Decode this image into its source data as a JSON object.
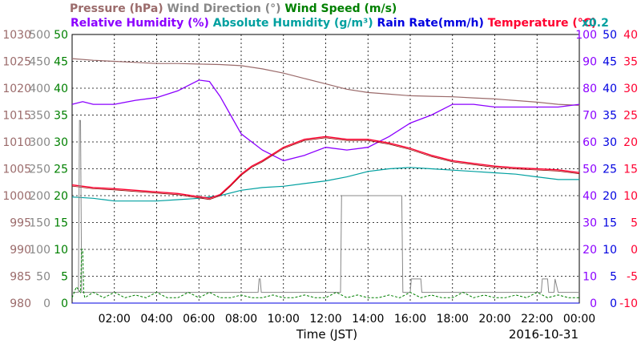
{
  "colors": {
    "pressure": "#9b6b6b",
    "wind_direction": "#888888",
    "wind_speed": "#008000",
    "humidity": "#8b00ff",
    "abs_humidity": "#00a0a0",
    "rain": "#0000e0",
    "temperature": "#ff0030",
    "temperature_dark": "#9b0000",
    "grid": "#000000"
  },
  "header": {
    "row1": [
      {
        "text": "Pressure (hPa)",
        "key": "pressure"
      },
      {
        "text": "Wind Direction (°)",
        "key": "wind_direction"
      },
      {
        "text": "Wind Speed (m/s)",
        "key": "wind_speed"
      }
    ],
    "row2": [
      {
        "text": "Relative Humidity (%)",
        "key": "humidity"
      },
      {
        "text": "Absolute Humidity (g/m³)",
        "key": "abs_humidity"
      },
      {
        "text": "Rain Rate(mm/h)",
        "key": "rain"
      },
      {
        "text": "Temperature (°C)",
        "key": "temperature"
      }
    ],
    "multiplier": "x0.2"
  },
  "footer": {
    "xlabel": "Time (JST)",
    "date": "2016-10-31"
  },
  "chart_data": {
    "type": "line",
    "grid": true,
    "x_range_hours": [
      0,
      24
    ],
    "x_ticks": [
      "02:00",
      "04:00",
      "06:00",
      "08:00",
      "10:00",
      "12:00",
      "14:00",
      "16:00",
      "18:00",
      "20:00",
      "22:00",
      "00:00"
    ],
    "axes": {
      "pressure": {
        "range": [
          980,
          1030
        ],
        "ticks": [
          1030,
          1025,
          1020,
          1015,
          1010,
          1005,
          1000,
          995,
          990,
          985,
          980
        ]
      },
      "wind_direction": {
        "range": [
          0,
          500
        ],
        "ticks": [
          500,
          450,
          400,
          350,
          300,
          250,
          200,
          150,
          100,
          50,
          0
        ]
      },
      "wind_speed": {
        "range": [
          0,
          50
        ],
        "ticks": [
          50,
          45,
          40,
          35,
          30,
          25,
          20,
          15,
          10,
          5,
          0
        ]
      },
      "humidity": {
        "range": [
          0,
          100
        ],
        "ticks": [
          100,
          90,
          80,
          70,
          60,
          50,
          40,
          30,
          20,
          10,
          0
        ]
      },
      "rain": {
        "range": [
          0,
          50
        ],
        "ticks": [
          50,
          45,
          40,
          35,
          30,
          25,
          20,
          15,
          10,
          5,
          0
        ]
      },
      "temperature": {
        "range": [
          -10,
          40
        ],
        "ticks": [
          40,
          35,
          30,
          25,
          20,
          15,
          10,
          5,
          0,
          -5,
          -10
        ]
      }
    },
    "series": [
      {
        "name": "Pressure (hPa)",
        "key": "pressure",
        "axis": "pressure",
        "x": [
          0,
          1,
          2,
          3,
          4,
          5,
          6,
          7,
          8,
          9,
          10,
          11,
          12,
          13,
          14,
          15,
          16,
          17,
          18,
          19,
          20,
          21,
          22,
          23,
          24
        ],
        "y": [
          1025.5,
          1025.2,
          1025,
          1024.8,
          1024.6,
          1024.6,
          1024.5,
          1024.4,
          1024.2,
          1023.6,
          1022.8,
          1021.8,
          1020.8,
          1019.8,
          1019.2,
          1018.9,
          1018.6,
          1018.5,
          1018.4,
          1018.2,
          1018,
          1017.7,
          1017.4,
          1017,
          1016.8
        ]
      },
      {
        "name": "Relative Humidity (%)",
        "key": "humidity",
        "axis": "humidity",
        "x": [
          0,
          0.5,
          1,
          2,
          3,
          4,
          5,
          5.5,
          6,
          6.5,
          7,
          7.5,
          8,
          9,
          10,
          11,
          12,
          13,
          14,
          15,
          16,
          17,
          18,
          19,
          20,
          21,
          22,
          23,
          24
        ],
        "y": [
          74,
          75,
          74,
          74,
          75.5,
          76.5,
          79,
          81,
          83,
          82.5,
          77,
          70,
          63,
          57,
          53,
          55,
          58,
          57,
          58,
          62,
          67,
          70,
          74,
          74,
          73,
          73,
          73,
          73,
          74
        ]
      },
      {
        "name": "Absolute Humidity (g/m³)",
        "key": "abs_humidity",
        "axis": "humidity",
        "x": [
          0,
          1,
          2,
          3,
          4,
          5,
          6,
          7,
          8,
          9,
          10,
          11,
          12,
          13,
          14,
          15,
          16,
          17,
          18,
          19,
          20,
          21,
          22,
          23,
          24
        ],
        "y": [
          39.5,
          39,
          38,
          38,
          38,
          38.5,
          39,
          40,
          42,
          43,
          43.5,
          44.5,
          45.5,
          47,
          49,
          50,
          50.5,
          50,
          49.5,
          49,
          48.5,
          48,
          47,
          46,
          46
        ]
      },
      {
        "name": "Temperature (°C)",
        "key": "temperature",
        "axis": "temperature",
        "x": [
          0,
          1,
          2,
          3,
          4,
          5,
          6,
          6.5,
          7,
          7.5,
          8,
          8.5,
          9,
          10,
          11,
          12,
          13,
          14,
          15,
          16,
          17,
          18,
          19,
          20,
          21,
          22,
          23,
          24
        ],
        "y": [
          12,
          11.5,
          11.3,
          11,
          10.7,
          10.4,
          9.8,
          9.5,
          10.2,
          12,
          14,
          15.5,
          16.5,
          19,
          20.5,
          21,
          20.5,
          20.5,
          19.8,
          18.8,
          17.5,
          16.5,
          16,
          15.5,
          15.2,
          15,
          14.8,
          14.3
        ]
      },
      {
        "name": "Wind Direction (°)",
        "key": "wind_direction",
        "axis": "wind_direction",
        "x": [
          0,
          0.3,
          0.35,
          0.4,
          0.45,
          0.5,
          1,
          2,
          3,
          4,
          5,
          6,
          7,
          8,
          8.8,
          8.85,
          8.9,
          8.95,
          9,
          10,
          11,
          12,
          12.7,
          12.75,
          15.6,
          15.65,
          16,
          16.05,
          16.5,
          16.55,
          16.8,
          16.85,
          17,
          18,
          19,
          20,
          21,
          22,
          22.2,
          22.25,
          22.5,
          22.55,
          22.8,
          22.85,
          23,
          24
        ],
        "y": [
          20,
          20,
          340,
          340,
          20,
          20,
          20,
          20,
          20,
          20,
          20,
          20,
          20,
          20,
          20,
          45,
          45,
          20,
          20,
          20,
          20,
          20,
          20,
          200,
          200,
          20,
          20,
          45,
          45,
          20,
          20,
          20,
          20,
          20,
          20,
          20,
          20,
          20,
          20,
          45,
          45,
          20,
          20,
          45,
          20,
          20
        ]
      },
      {
        "name": "Wind Speed (m/s)",
        "key": "wind_speed",
        "axis": "wind_speed",
        "x": [
          0,
          0.2,
          0.4,
          0.45,
          0.5,
          0.55,
          0.6,
          1,
          1.5,
          2,
          2.5,
          3,
          3.5,
          4,
          4.5,
          5,
          5.5,
          6,
          6.5,
          7,
          7.5,
          8,
          8.5,
          9,
          9.5,
          10,
          10.5,
          11,
          11.5,
          12,
          12.5,
          13,
          13.5,
          14,
          14.5,
          15,
          15.5,
          16,
          16.5,
          17,
          17.5,
          18,
          18.5,
          19,
          19.5,
          20,
          20.5,
          21,
          21.5,
          22,
          22.5,
          23,
          23.5,
          24
        ],
        "y": [
          1,
          3,
          2,
          10,
          10,
          2,
          1,
          2,
          1,
          2,
          1,
          1.5,
          1,
          2,
          1,
          1,
          2,
          1,
          2,
          1,
          1,
          1.5,
          1,
          1,
          1.5,
          1,
          1,
          1.5,
          1,
          1,
          2,
          1,
          1.5,
          1,
          1,
          1.5,
          1,
          2,
          1,
          1.5,
          1,
          1,
          2,
          1,
          1.5,
          1,
          1,
          1.5,
          1,
          2,
          1,
          1.5,
          1,
          1
        ]
      },
      {
        "name": "Rain Rate(mm/h)",
        "key": "rain",
        "axis": "rain",
        "x": [
          0,
          24
        ],
        "y": [
          0,
          0
        ]
      }
    ]
  }
}
